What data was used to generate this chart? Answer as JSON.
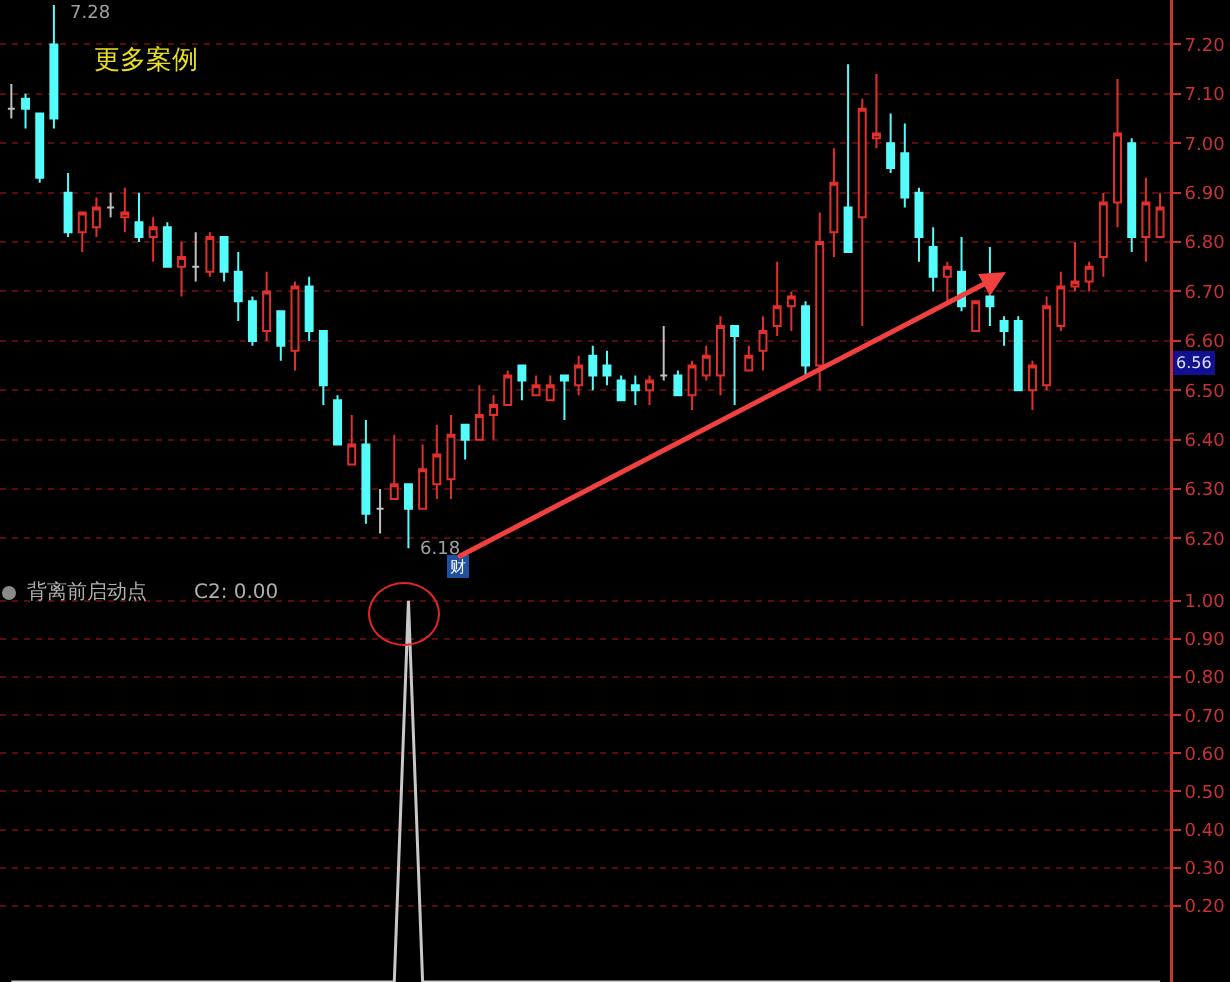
{
  "chart_data": [
    {
      "type": "candlestick",
      "tick_labels": "y",
      "grid": "y",
      "categories": [
        null,
        null,
        null,
        null,
        null,
        null,
        null,
        null,
        null,
        null,
        null,
        null,
        null,
        null,
        null,
        null,
        null,
        null,
        null,
        null,
        null,
        null,
        null,
        null,
        null,
        null,
        null,
        null,
        null,
        null,
        null,
        null,
        null,
        null,
        null,
        null,
        null,
        null,
        null,
        null,
        null,
        null,
        null,
        null,
        null,
        null,
        null,
        null,
        null,
        null,
        null,
        null,
        null,
        null,
        null,
        null,
        null,
        null,
        null,
        null,
        null,
        null,
        null,
        null,
        null,
        null,
        null,
        null,
        null,
        null,
        null,
        null,
        null,
        null,
        null,
        null,
        null,
        null,
        null,
        null,
        null,
        null
      ],
      "ohlc": [
        [
          7.07,
          7.12,
          7.05,
          7.07
        ],
        [
          7.09,
          7.1,
          7.03,
          7.07
        ],
        [
          7.06,
          7.06,
          6.92,
          6.93
        ],
        [
          7.2,
          7.28,
          7.03,
          7.05
        ],
        [
          6.9,
          6.94,
          6.81,
          6.82
        ],
        [
          6.82,
          6.86,
          6.78,
          6.86
        ],
        [
          6.83,
          6.89,
          6.81,
          6.87
        ],
        [
          6.87,
          6.9,
          6.85,
          6.87
        ],
        [
          6.85,
          6.91,
          6.82,
          6.86
        ],
        [
          6.84,
          6.9,
          6.8,
          6.81
        ],
        [
          6.81,
          6.85,
          6.76,
          6.83
        ],
        [
          6.83,
          6.84,
          6.75,
          6.75
        ],
        [
          6.75,
          6.8,
          6.69,
          6.77
        ],
        [
          6.75,
          6.82,
          6.72,
          6.75
        ],
        [
          6.74,
          6.82,
          6.73,
          6.81
        ],
        [
          6.81,
          6.81,
          6.72,
          6.74
        ],
        [
          6.74,
          6.78,
          6.64,
          6.68
        ],
        [
          6.68,
          6.69,
          6.59,
          6.6
        ],
        [
          6.62,
          6.74,
          6.6,
          6.7
        ],
        [
          6.66,
          6.66,
          6.56,
          6.59
        ],
        [
          6.58,
          6.72,
          6.54,
          6.71
        ],
        [
          6.71,
          6.73,
          6.6,
          6.62
        ],
        [
          6.62,
          6.62,
          6.47,
          6.51
        ],
        [
          6.48,
          6.49,
          6.39,
          6.39
        ],
        [
          6.35,
          6.45,
          6.35,
          6.39
        ],
        [
          6.39,
          6.44,
          6.23,
          6.25
        ],
        [
          6.26,
          6.3,
          6.21,
          6.26
        ],
        [
          6.28,
          6.41,
          6.28,
          6.31
        ],
        [
          6.31,
          6.31,
          6.18,
          6.26
        ],
        [
          6.26,
          6.39,
          6.26,
          6.34
        ],
        [
          6.31,
          6.43,
          6.28,
          6.37
        ],
        [
          6.32,
          6.45,
          6.28,
          6.41
        ],
        [
          6.43,
          6.43,
          6.36,
          6.4
        ],
        [
          6.4,
          6.51,
          6.4,
          6.45
        ],
        [
          6.45,
          6.49,
          6.4,
          6.47
        ],
        [
          6.47,
          6.54,
          6.47,
          6.53
        ],
        [
          6.55,
          6.55,
          6.48,
          6.52
        ],
        [
          6.49,
          6.53,
          6.49,
          6.51
        ],
        [
          6.48,
          6.53,
          6.48,
          6.51
        ],
        [
          6.53,
          6.53,
          6.44,
          6.52
        ],
        [
          6.51,
          6.57,
          6.49,
          6.55
        ],
        [
          6.57,
          6.59,
          6.5,
          6.53
        ],
        [
          6.55,
          6.58,
          6.51,
          6.53
        ],
        [
          6.52,
          6.53,
          6.48,
          6.48
        ],
        [
          6.51,
          6.53,
          6.47,
          6.5
        ],
        [
          6.5,
          6.53,
          6.47,
          6.52
        ],
        [
          6.53,
          6.63,
          6.52,
          6.53
        ],
        [
          6.53,
          6.54,
          6.49,
          6.49
        ],
        [
          6.49,
          6.56,
          6.46,
          6.55
        ],
        [
          6.53,
          6.59,
          6.52,
          6.57
        ],
        [
          6.53,
          6.65,
          6.49,
          6.63
        ],
        [
          6.63,
          6.63,
          6.47,
          6.61
        ],
        [
          6.54,
          6.59,
          6.54,
          6.57
        ],
        [
          6.58,
          6.65,
          6.54,
          6.62
        ],
        [
          6.63,
          6.76,
          6.61,
          6.67
        ],
        [
          6.67,
          6.7,
          6.62,
          6.69
        ],
        [
          6.67,
          6.68,
          6.53,
          6.55
        ],
        [
          6.55,
          6.86,
          6.5,
          6.8
        ],
        [
          6.82,
          6.99,
          6.77,
          6.92
        ],
        [
          6.87,
          7.16,
          6.78,
          6.78
        ],
        [
          6.85,
          7.09,
          6.63,
          7.07
        ],
        [
          7.01,
          7.14,
          6.99,
          7.02
        ],
        [
          7.0,
          7.06,
          6.94,
          6.95
        ],
        [
          6.98,
          7.04,
          6.87,
          6.89
        ],
        [
          6.9,
          6.91,
          6.76,
          6.81
        ],
        [
          6.79,
          6.83,
          6.7,
          6.73
        ],
        [
          6.73,
          6.76,
          6.68,
          6.75
        ],
        [
          6.74,
          6.81,
          6.66,
          6.67
        ],
        [
          6.62,
          6.68,
          6.62,
          6.68
        ],
        [
          6.69,
          6.79,
          6.63,
          6.67
        ],
        [
          6.64,
          6.65,
          6.59,
          6.62
        ],
        [
          6.64,
          6.65,
          6.5,
          6.5
        ],
        [
          6.5,
          6.56,
          6.46,
          6.55
        ],
        [
          6.51,
          6.69,
          6.5,
          6.67
        ],
        [
          6.63,
          6.74,
          6.62,
          6.71
        ],
        [
          6.71,
          6.8,
          6.7,
          6.72
        ],
        [
          6.72,
          6.76,
          6.7,
          6.75
        ],
        [
          6.77,
          6.9,
          6.73,
          6.88
        ],
        [
          6.88,
          7.13,
          6.83,
          7.02
        ],
        [
          7.0,
          7.01,
          6.78,
          6.81
        ],
        [
          6.81,
          6.93,
          6.76,
          6.88
        ],
        [
          6.81,
          6.9,
          6.81,
          6.87
        ]
      ],
      "colors": [
        "#c0c0c0",
        "#54fcfc",
        "#54fcfc",
        "#54fcfc",
        "#54fcfc",
        "#e0302c",
        "#e0302c",
        "#c0c0c0",
        "#e0302c",
        "#54fcfc",
        "#e0302c",
        "#54fcfc",
        "#e0302c",
        "#c0c0c0",
        "#e0302c",
        "#54fcfc",
        "#54fcfc",
        "#54fcfc",
        "#e0302c",
        "#54fcfc",
        "#e0302c",
        "#54fcfc",
        "#54fcfc",
        "#54fcfc",
        "#e0302c",
        "#54fcfc",
        "#c0c0c0",
        "#e0302c",
        "#54fcfc",
        "#e0302c",
        "#e0302c",
        "#e0302c",
        "#54fcfc",
        "#e0302c",
        "#e0302c",
        "#e0302c",
        "#54fcfc",
        "#e0302c",
        "#e0302c",
        "#54fcfc",
        "#e0302c",
        "#54fcfc",
        "#54fcfc",
        "#54fcfc",
        "#54fcfc",
        "#e0302c",
        "#c0c0c0",
        "#54fcfc",
        "#e0302c",
        "#e0302c",
        "#e0302c",
        "#54fcfc",
        "#e0302c",
        "#e0302c",
        "#e0302c",
        "#e0302c",
        "#54fcfc",
        "#e0302c",
        "#e0302c",
        "#54fcfc",
        "#e0302c",
        "#e0302c",
        "#54fcfc",
        "#54fcfc",
        "#54fcfc",
        "#54fcfc",
        "#e0302c",
        "#54fcfc",
        "#e0302c",
        "#54fcfc",
        "#54fcfc",
        "#54fcfc",
        "#e0302c",
        "#e0302c",
        "#e0302c",
        "#e0302c",
        "#e0302c",
        "#e0302c",
        "#e0302c",
        "#54fcfc",
        "#e0302c",
        "#e0302c"
      ],
      "ylim": [
        6.12,
        7.29
      ],
      "yticks": [
        {
          "value": 6.2,
          "label": "6.20"
        },
        {
          "value": 6.3,
          "label": "6.30"
        },
        {
          "value": 6.4,
          "label": "6.40"
        },
        {
          "value": 6.5,
          "label": "6.50"
        },
        {
          "value": 6.6,
          "label": "6.60"
        },
        {
          "value": 6.7,
          "label": "6.70"
        },
        {
          "value": 6.8,
          "label": "6.80"
        },
        {
          "value": 6.9,
          "label": "6.90"
        },
        {
          "value": 7.0,
          "label": "7.00"
        },
        {
          "value": 7.1,
          "label": "7.10"
        },
        {
          "value": 7.2,
          "label": "7.20"
        }
      ],
      "annotations": [
        "更多案例",
        "财",
        "6.56",
        "7.28",
        "6.18"
      ]
    },
    {
      "type": "line",
      "tick_labels": "y",
      "grid": "y",
      "title": "背离前启动点",
      "annotations": [
        "C2: 0.00"
      ],
      "categories": [
        null,
        null,
        null,
        null,
        null,
        null,
        null,
        null,
        null,
        null,
        null,
        null,
        null,
        null,
        null,
        null,
        null,
        null,
        null,
        null,
        null,
        null,
        null,
        null,
        null,
        null,
        null,
        null,
        null,
        null,
        null,
        null,
        null,
        null,
        null,
        null,
        null,
        null,
        null,
        null,
        null,
        null,
        null,
        null,
        null,
        null,
        null,
        null,
        null,
        null,
        null,
        null,
        null,
        null,
        null,
        null,
        null,
        null,
        null,
        null,
        null,
        null,
        null,
        null,
        null,
        null,
        null,
        null,
        null,
        null,
        null,
        null,
        null,
        null,
        null,
        null,
        null,
        null,
        null,
        null,
        null,
        null
      ],
      "values": [
        0,
        0,
        0,
        0,
        0,
        0,
        0,
        0,
        0,
        0,
        0,
        0,
        0,
        0,
        0,
        0,
        0,
        0,
        0,
        0,
        0,
        0,
        0,
        0,
        0,
        0,
        0,
        0,
        1,
        0,
        0,
        0,
        0,
        0,
        0,
        0,
        0,
        0,
        0,
        0,
        0,
        0,
        0,
        0,
        0,
        0,
        0,
        0,
        0,
        0,
        0,
        0,
        0,
        0,
        0,
        0,
        0,
        0,
        0,
        0,
        0,
        0,
        0,
        0,
        0,
        0,
        0,
        0,
        0,
        0,
        0,
        0,
        0,
        0,
        0,
        0,
        0,
        0,
        0,
        0,
        0,
        0
      ],
      "color": "#c8c8c8",
      "ylim": [
        0,
        1.06
      ],
      "yticks": [
        {
          "value": 0.2,
          "label": "0.20"
        },
        {
          "value": 0.3,
          "label": "0.30"
        },
        {
          "value": 0.4,
          "label": "0.40"
        },
        {
          "value": 0.5,
          "label": "0.50"
        },
        {
          "value": 0.6,
          "label": "0.60"
        },
        {
          "value": 0.7,
          "label": "0.70"
        },
        {
          "value": 0.8,
          "label": "0.80"
        },
        {
          "value": 0.9,
          "label": "0.90"
        },
        {
          "value": 1.0,
          "label": "1.00"
        }
      ]
    }
  ]
}
